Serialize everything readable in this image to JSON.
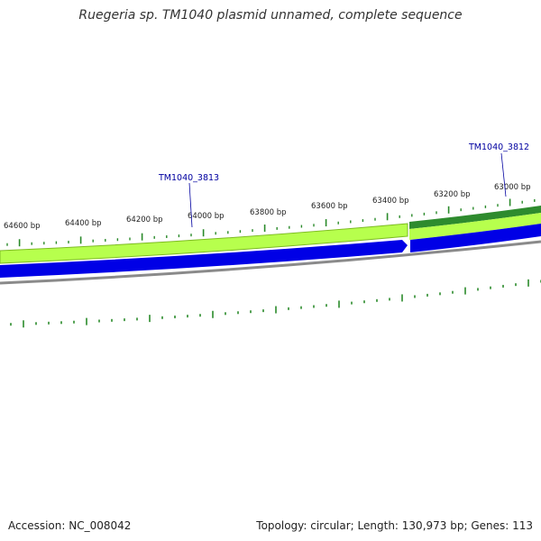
{
  "title": "Ruegeria sp. TM1040 plasmid unnamed, complete sequence",
  "ruler": {
    "labels": [
      "64600 bp",
      "64400 bp",
      "64200 bp",
      "64000 bp",
      "63800 bp",
      "63600 bp",
      "63400 bp",
      "63200 bp",
      "63000 bp"
    ]
  },
  "genes": [
    {
      "name": "TM1040_3813"
    },
    {
      "name": "TM1040_3812"
    }
  ],
  "colors": {
    "gene_track_light": "#aaff44",
    "gene_track_dark": "#228b22",
    "strand_blue": "#0000e0",
    "backbone_gray": "#888888",
    "gc_ticks": "#2a8a2a",
    "label_blue": "#0000a0"
  },
  "footer": {
    "accession": "Accession: NC_008042",
    "summary": "Topology: circular; Length: 130,973 bp; Genes: 113"
  }
}
